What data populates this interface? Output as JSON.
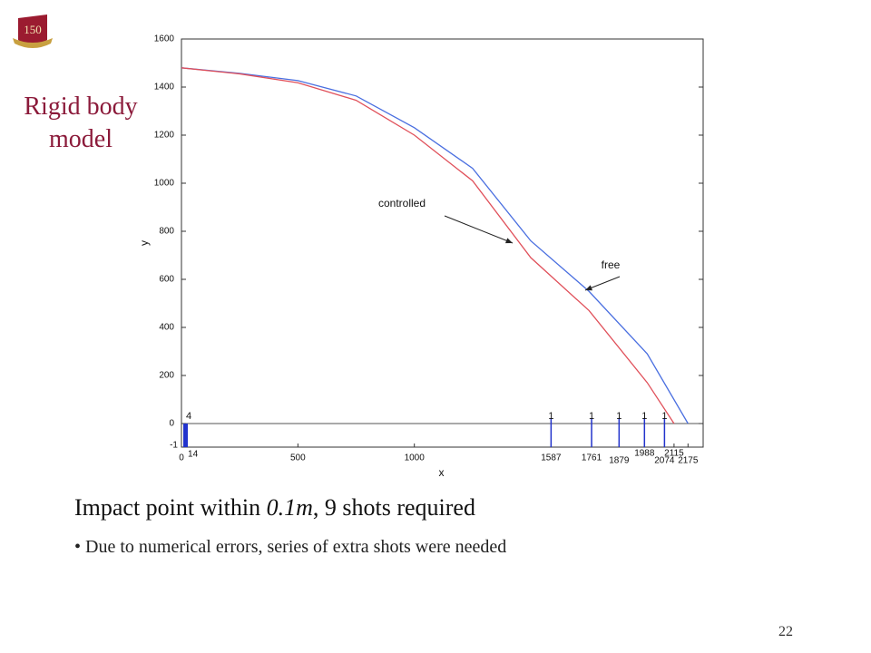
{
  "slide": {
    "logo": "150",
    "side_title": "Rigid body model",
    "heading": [
      "Impact point within ",
      "0.1m",
      ", 9 shots required"
    ],
    "bullet": "Due to numerical errors, series of extra shots were needed",
    "page_number": "22"
  },
  "chart_data": {
    "type": "line",
    "xlabel": "x",
    "ylabel": "y",
    "xlim": [
      0,
      2240
    ],
    "ylim": [
      0,
      1600
    ],
    "yticks": [
      0,
      200,
      400,
      600,
      800,
      1000,
      1200,
      1400,
      1600
    ],
    "xticks": [
      0,
      14,
      500,
      1000,
      1587,
      1761,
      1879,
      1988,
      2074,
      2115,
      2175
    ],
    "series": [
      {
        "name": "free",
        "color": "#4a6fe0",
        "x": [
          0,
          250,
          500,
          750,
          1000,
          1250,
          1500,
          1750,
          2000,
          2175
        ],
        "values": [
          1480,
          1457,
          1427,
          1363,
          1231,
          1062,
          760,
          550,
          290,
          0
        ]
      },
      {
        "name": "controlled",
        "color": "#e0505a",
        "x": [
          0,
          250,
          500,
          750,
          1000,
          1250,
          1500,
          1750,
          2000,
          2115
        ],
        "values": [
          1480,
          1455,
          1418,
          1345,
          1200,
          1010,
          690,
          470,
          170,
          0
        ]
      }
    ],
    "strip_ylim": [
      -1,
      0
    ],
    "strip_yticks": [
      -1
    ],
    "shots": {
      "x": [
        0,
        1587,
        1761,
        1879,
        1988,
        2074
      ],
      "counts": [
        4,
        1,
        1,
        1,
        1,
        1
      ],
      "color": "#2233cc"
    },
    "annotations": [
      {
        "text": "controlled",
        "series": 1
      },
      {
        "text": "free",
        "series": 0
      }
    ]
  }
}
